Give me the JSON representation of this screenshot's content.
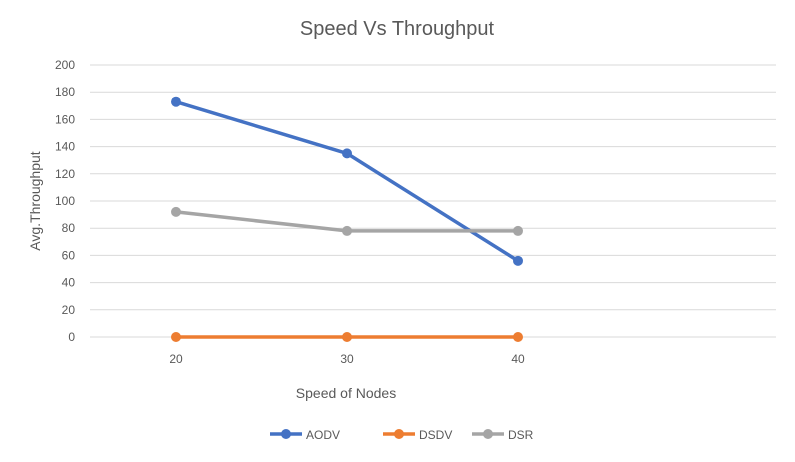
{
  "chart_data": {
    "type": "line",
    "title": "Speed Vs Throughput",
    "xlabel": "Speed of Nodes",
    "ylabel": "Avg.Throughput",
    "categories": [
      "20",
      "30",
      "40"
    ],
    "ylim": [
      0,
      200
    ],
    "yticks": [
      0,
      20,
      40,
      60,
      80,
      100,
      120,
      140,
      160,
      180,
      200
    ],
    "grid": "horizontal",
    "legend": "bottom",
    "series": [
      {
        "name": "AODV",
        "color": "#4472C4",
        "values": [
          173,
          135,
          56
        ]
      },
      {
        "name": "DSDV",
        "color": "#ED7D31",
        "values": [
          0,
          0,
          0
        ]
      },
      {
        "name": "DSR",
        "color": "#A5A5A5",
        "values": [
          92,
          78,
          78
        ]
      }
    ]
  }
}
